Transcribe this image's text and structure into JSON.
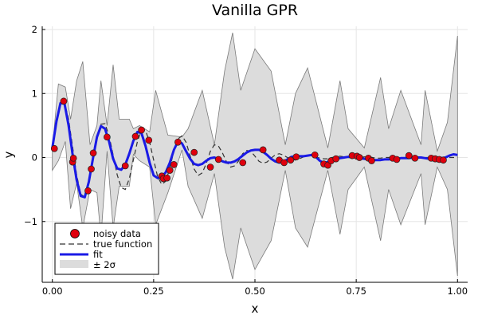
{
  "chart_data": {
    "type": "line",
    "title": "Vanilla GPR",
    "xlabel": "x",
    "ylabel": "y",
    "xlim": [
      -0.025,
      1.025
    ],
    "ylim": [
      -1.95,
      2.05
    ],
    "xticks": [
      0.0,
      0.25,
      0.5,
      0.75,
      1.0
    ],
    "xtick_labels": [
      "0.00",
      "0.25",
      "0.50",
      "0.75",
      "1.00"
    ],
    "yticks": [
      -1,
      0,
      1,
      2
    ],
    "ytick_labels": [
      "−1",
      "0",
      "1",
      "2"
    ],
    "grid": true,
    "legend_position": "bottom-left",
    "colors": {
      "noisy_data": "#e0000d",
      "true_function": "#333333",
      "fit": "#1a1ae6",
      "band_fill": "#dcdcdc",
      "band_edge": "#7a7a7a"
    },
    "legend": [
      {
        "label": "noisy data",
        "kind": "marker"
      },
      {
        "label": "true function",
        "kind": "dashed"
      },
      {
        "label": "fit",
        "kind": "line"
      },
      {
        "label": "± 2σ",
        "kind": "band"
      }
    ],
    "series": [
      {
        "name": "noisy data",
        "kind": "scatter",
        "x": [
          0.005,
          0.028,
          0.05,
          0.052,
          0.088,
          0.096,
          0.101,
          0.135,
          0.18,
          0.205,
          0.22,
          0.238,
          0.27,
          0.274,
          0.283,
          0.29,
          0.3,
          0.31,
          0.35,
          0.39,
          0.41,
          0.47,
          0.52,
          0.56,
          0.572,
          0.588,
          0.602,
          0.648,
          0.67,
          0.68,
          0.688,
          0.7,
          0.74,
          0.752,
          0.758,
          0.78,
          0.788,
          0.84,
          0.85,
          0.88,
          0.895,
          0.935,
          0.945,
          0.955,
          0.965
        ],
        "y": [
          0.14,
          0.88,
          -0.07,
          -0.01,
          -0.52,
          -0.18,
          0.07,
          0.32,
          -0.13,
          0.33,
          0.43,
          0.27,
          -0.29,
          -0.33,
          -0.32,
          -0.2,
          -0.11,
          0.24,
          0.08,
          -0.15,
          -0.03,
          -0.08,
          0.12,
          -0.04,
          -0.08,
          -0.04,
          0.01,
          0.04,
          -0.1,
          -0.12,
          -0.05,
          -0.02,
          0.03,
          0.02,
          0.0,
          -0.01,
          -0.05,
          -0.01,
          -0.03,
          0.03,
          -0.01,
          -0.01,
          -0.02,
          -0.03,
          -0.04
        ]
      },
      {
        "name": "true function",
        "kind": "dashed",
        "x": [
          0.0,
          0.01,
          0.02,
          0.03,
          0.04,
          0.05,
          0.06,
          0.07,
          0.08,
          0.09,
          0.1,
          0.11,
          0.12,
          0.13,
          0.14,
          0.15,
          0.16,
          0.17,
          0.18,
          0.19,
          0.2,
          0.21,
          0.22,
          0.23,
          0.24,
          0.25,
          0.26,
          0.27,
          0.28,
          0.29,
          0.3,
          0.31,
          0.32,
          0.33,
          0.34,
          0.35,
          0.36,
          0.37,
          0.38,
          0.39,
          0.4,
          0.41,
          0.42,
          0.43,
          0.44,
          0.45,
          0.46,
          0.47,
          0.48,
          0.49,
          0.5,
          0.51,
          0.52,
          0.53,
          0.54,
          0.55,
          0.56,
          0.57,
          0.58,
          0.59,
          0.6,
          0.61,
          0.62,
          0.63,
          0.64,
          0.65,
          0.66,
          0.67,
          0.68,
          0.69,
          0.7,
          0.71,
          0.72,
          0.73,
          0.74,
          0.75,
          0.76,
          0.77,
          0.78,
          0.79,
          0.8,
          0.81,
          0.82,
          0.83,
          0.84,
          0.85,
          0.86,
          0.87,
          0.88,
          0.89,
          0.9,
          0.91,
          0.92,
          0.93,
          0.94,
          0.95,
          0.96,
          0.97,
          0.98,
          0.99,
          1.0
        ],
        "y": [
          0.12,
          0.55,
          0.83,
          0.86,
          0.6,
          0.17,
          -0.27,
          -0.57,
          -0.62,
          -0.41,
          -0.05,
          0.3,
          0.52,
          0.53,
          0.34,
          0.04,
          -0.27,
          -0.47,
          -0.5,
          -0.33,
          -0.04,
          0.25,
          0.43,
          0.42,
          0.24,
          -0.04,
          -0.3,
          -0.42,
          -0.37,
          -0.16,
          0.1,
          0.29,
          0.34,
          0.24,
          0.03,
          -0.18,
          -0.28,
          -0.24,
          -0.09,
          0.1,
          0.2,
          0.18,
          0.07,
          -0.07,
          -0.15,
          -0.13,
          -0.05,
          0.06,
          0.11,
          0.1,
          0.02,
          -0.06,
          -0.09,
          -0.07,
          -0.01,
          0.04,
          0.06,
          0.04,
          0.0,
          -0.03,
          -0.04,
          -0.02,
          0.01,
          0.03,
          0.03,
          0.01,
          -0.01,
          -0.02,
          -0.02,
          0.0,
          0.01,
          0.02,
          0.01,
          0.0,
          -0.01,
          -0.01,
          0.0,
          0.01,
          0.01,
          0.0,
          -0.01,
          -0.01,
          0.0,
          0.0,
          0.01,
          0.0,
          0.0,
          -0.01,
          0.0,
          0.0,
          0.0,
          0.0,
          0.0,
          0.0,
          0.0,
          0.0,
          0.0,
          0.0,
          0.0,
          0.0,
          0.0
        ]
      },
      {
        "name": "fit",
        "kind": "line",
        "x": [
          0.0,
          0.01,
          0.02,
          0.03,
          0.04,
          0.05,
          0.06,
          0.07,
          0.08,
          0.09,
          0.1,
          0.11,
          0.12,
          0.13,
          0.14,
          0.15,
          0.16,
          0.17,
          0.18,
          0.19,
          0.2,
          0.21,
          0.22,
          0.23,
          0.24,
          0.25,
          0.26,
          0.27,
          0.28,
          0.29,
          0.3,
          0.31,
          0.32,
          0.33,
          0.34,
          0.35,
          0.36,
          0.37,
          0.38,
          0.39,
          0.4,
          0.41,
          0.42,
          0.43,
          0.44,
          0.45,
          0.46,
          0.47,
          0.48,
          0.49,
          0.5,
          0.51,
          0.52,
          0.53,
          0.54,
          0.55,
          0.56,
          0.57,
          0.58,
          0.59,
          0.6,
          0.61,
          0.62,
          0.63,
          0.64,
          0.65,
          0.66,
          0.67,
          0.68,
          0.69,
          0.7,
          0.71,
          0.72,
          0.73,
          0.74,
          0.75,
          0.76,
          0.77,
          0.78,
          0.79,
          0.8,
          0.81,
          0.82,
          0.83,
          0.84,
          0.85,
          0.86,
          0.87,
          0.88,
          0.89,
          0.9,
          0.91,
          0.92,
          0.93,
          0.94,
          0.95,
          0.96,
          0.97,
          0.98,
          0.99,
          1.0
        ],
        "y": [
          0.15,
          0.56,
          0.85,
          0.84,
          0.5,
          0.05,
          -0.35,
          -0.6,
          -0.62,
          -0.38,
          -0.02,
          0.32,
          0.49,
          0.45,
          0.25,
          -0.02,
          -0.17,
          -0.19,
          -0.11,
          0.06,
          0.26,
          0.4,
          0.38,
          0.18,
          -0.08,
          -0.28,
          -0.32,
          -0.3,
          -0.23,
          -0.08,
          0.12,
          0.25,
          0.22,
          0.1,
          -0.02,
          -0.1,
          -0.12,
          -0.1,
          -0.05,
          -0.01,
          0.0,
          -0.03,
          -0.06,
          -0.08,
          -0.08,
          -0.06,
          -0.02,
          0.03,
          0.08,
          0.11,
          0.12,
          0.12,
          0.09,
          0.04,
          -0.02,
          -0.06,
          -0.08,
          -0.07,
          -0.03,
          0.01,
          0.02,
          0.02,
          0.02,
          0.03,
          0.04,
          0.01,
          -0.05,
          -0.09,
          -0.07,
          -0.04,
          -0.02,
          -0.01,
          0.0,
          0.01,
          0.02,
          0.01,
          -0.01,
          -0.02,
          -0.03,
          -0.04,
          -0.04,
          -0.04,
          -0.03,
          -0.03,
          -0.02,
          -0.02,
          -0.01,
          -0.01,
          -0.01,
          0.0,
          0.0,
          0.0,
          -0.01,
          -0.02,
          -0.03,
          -0.02,
          -0.01,
          0.0,
          0.03,
          0.05,
          0.04
        ]
      },
      {
        "name": "± 2σ",
        "kind": "band",
        "x": [
          0.0,
          0.015,
          0.032,
          0.045,
          0.06,
          0.075,
          0.093,
          0.11,
          0.12,
          0.135,
          0.15,
          0.165,
          0.19,
          0.2,
          0.215,
          0.24,
          0.255,
          0.285,
          0.32,
          0.335,
          0.37,
          0.4,
          0.425,
          0.445,
          0.465,
          0.5,
          0.54,
          0.575,
          0.6,
          0.63,
          0.68,
          0.71,
          0.73,
          0.77,
          0.81,
          0.83,
          0.86,
          0.91,
          0.92,
          0.95,
          0.975,
          1.0
        ],
        "y_upper": [
          0.15,
          1.15,
          1.1,
          0.6,
          1.2,
          1.5,
          0.2,
          0.5,
          1.2,
          0.5,
          1.45,
          0.6,
          0.6,
          0.45,
          0.5,
          0.4,
          1.05,
          0.35,
          0.32,
          0.45,
          1.05,
          0.2,
          1.35,
          1.95,
          1.05,
          1.7,
          1.35,
          0.2,
          1.0,
          1.4,
          0.15,
          1.2,
          0.45,
          0.15,
          1.25,
          0.45,
          1.05,
          0.2,
          1.05,
          0.1,
          0.55,
          1.9
        ],
        "y_lower": [
          -0.2,
          -0.05,
          0.25,
          -0.8,
          -0.4,
          -1.1,
          -0.5,
          -0.55,
          -1.25,
          0.1,
          -1.1,
          -0.45,
          -0.45,
          0.05,
          -0.05,
          -0.15,
          -1.05,
          -0.55,
          0.12,
          -0.45,
          -0.95,
          -0.25,
          -1.4,
          -1.9,
          -1.1,
          -1.75,
          -1.3,
          -0.2,
          -1.1,
          -1.4,
          -0.2,
          -1.2,
          -0.5,
          -0.15,
          -1.3,
          -0.5,
          -1.05,
          -0.25,
          -1.05,
          -0.15,
          -0.5,
          -1.85
        ]
      }
    ]
  }
}
